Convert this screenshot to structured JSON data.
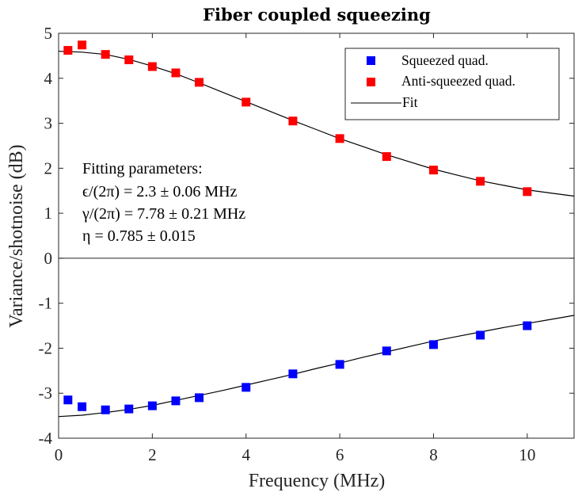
{
  "chart_data": {
    "type": "scatter",
    "title": "Fiber coupled squeezing",
    "xlabel": "Frequency (MHz)",
    "ylabel": "Variance/shotnoise (dB)",
    "xlim": [
      0,
      11
    ],
    "ylim": [
      -4,
      5
    ],
    "xticks": [
      0,
      2,
      4,
      6,
      8,
      10
    ],
    "xtick_labels": [
      "0",
      "2",
      "4",
      "6",
      "8",
      "10"
    ],
    "yticks": [
      -4,
      -3,
      -2,
      -1,
      0,
      1,
      2,
      3,
      4,
      5
    ],
    "ytick_labels": [
      "-4",
      "-3",
      "-2",
      "-1",
      "0",
      "1",
      "2",
      "3",
      "4",
      "5"
    ],
    "grid": false,
    "zero_line": true,
    "legend_position": "top-right",
    "series": [
      {
        "name": "Squeezed quad.",
        "kind": "scatter",
        "marker": "square",
        "color": "#0000ff",
        "x": [
          0.2,
          0.5,
          1,
          1.5,
          2,
          2.5,
          3,
          4,
          5,
          6,
          7,
          8,
          9,
          10
        ],
        "y": [
          -3.15,
          -3.3,
          -3.37,
          -3.35,
          -3.28,
          -3.17,
          -3.1,
          -2.87,
          -2.57,
          -2.36,
          -2.06,
          -1.92,
          -1.71,
          -1.5
        ]
      },
      {
        "name": "Anti-squeezed quad.",
        "kind": "scatter",
        "marker": "square",
        "color": "#ff0000",
        "x": [
          0.2,
          0.5,
          1,
          1.5,
          2,
          2.5,
          3,
          4,
          5,
          6,
          7,
          8,
          9,
          10
        ],
        "y": [
          4.62,
          4.74,
          4.53,
          4.41,
          4.26,
          4.12,
          3.91,
          3.47,
          3.05,
          2.66,
          2.26,
          1.96,
          1.71,
          1.48
        ]
      },
      {
        "name": "Fit",
        "kind": "line",
        "color": "#000000",
        "curves": [
          {
            "x": [
              0,
              0.5,
              1,
              1.5,
              2,
              2.5,
              3,
              3.5,
              4,
              4.5,
              5,
              5.5,
              6,
              6.5,
              7,
              7.5,
              8,
              8.5,
              9,
              9.5,
              10,
              10.5,
              11
            ],
            "y": [
              4.6,
              4.58,
              4.53,
              4.42,
              4.27,
              4.1,
              3.9,
              3.69,
              3.48,
              3.27,
              3.06,
              2.86,
              2.66,
              2.48,
              2.3,
              2.14,
              1.98,
              1.85,
              1.72,
              1.62,
              1.52,
              1.45,
              1.38
            ]
          },
          {
            "x": [
              0,
              0.5,
              1,
              1.5,
              2,
              2.5,
              3,
              3.5,
              4,
              4.5,
              5,
              5.5,
              6,
              6.5,
              7,
              7.5,
              8,
              8.5,
              9,
              9.5,
              10,
              10.5,
              11
            ],
            "y": [
              -3.52,
              -3.49,
              -3.43,
              -3.36,
              -3.27,
              -3.16,
              -3.05,
              -2.94,
              -2.82,
              -2.7,
              -2.58,
              -2.45,
              -2.33,
              -2.2,
              -2.08,
              -1.96,
              -1.84,
              -1.74,
              -1.64,
              -1.54,
              -1.45,
              -1.36,
              -1.27
            ]
          }
        ]
      }
    ],
    "legend": [
      "Squeezed quad.",
      "Anti-squeezed quad.",
      "Fit"
    ],
    "annotation": {
      "lines": [
        "Fitting parameters:",
        "ϵ/(2π) = 2.3 ± 0.06 MHz",
        "γ/(2π) = 7.78 ± 0.21 MHz",
        "η = 0.785 ± 0.015"
      ]
    }
  }
}
